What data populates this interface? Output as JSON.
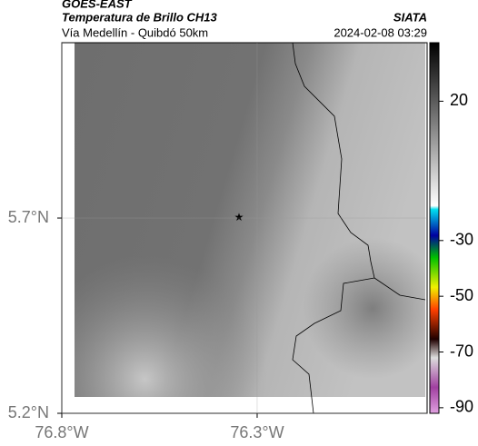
{
  "header": {
    "title": "GOES-EAST",
    "subtitle": "Temperatura de Brillo CH13",
    "location": "Vía Medellín - Quibdó 50km",
    "source": "SIATA",
    "datetime": "2024-02-08 03:29"
  },
  "map": {
    "xlim": [
      -76.8,
      -75.865
    ],
    "ylim": [
      5.2,
      6.149
    ],
    "xticks": [
      {
        "value": -76.8,
        "label": "76.8°W"
      },
      {
        "value": -76.3,
        "label": "76.3°W"
      }
    ],
    "yticks": [
      {
        "value": 5.7,
        "label": "5.7°N"
      },
      {
        "value": 5.2,
        "label": "5.2°N"
      }
    ],
    "grid": true
  },
  "colorbar": {
    "lim": [
      41,
      -92
    ],
    "ticks": [
      20,
      -30,
      -50,
      -70,
      -90
    ]
  }
}
